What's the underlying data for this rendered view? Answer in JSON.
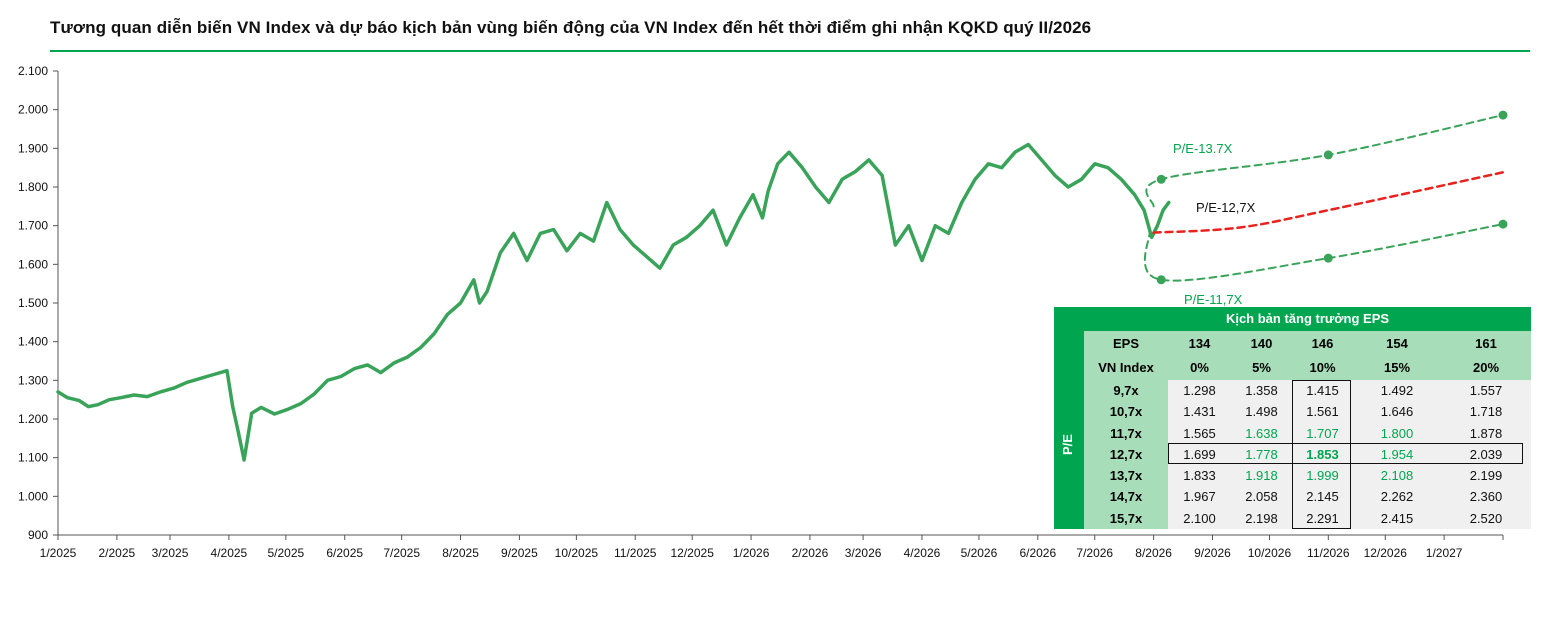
{
  "title": "Tương quan diễn biến VN Index và dự báo kịch bản vùng biến động của VN Index đến hết thời điểm ghi nhận KQKD quý II/2026",
  "colors": {
    "accent": "#00a64f",
    "history_line": "#3aa35a",
    "pe_mid_line": "#e8221e",
    "header_fill": "#a8ddb9"
  },
  "chart_data": {
    "type": "line",
    "title": "Tương quan diễn biến VN Index và dự báo kịch bản vùng biến động của VN Index đến hết thời điểm ghi nhận KQKD quý II/2026",
    "ylim": [
      900,
      2100
    ],
    "yticks": [
      "900",
      "1.000",
      "1.100",
      "1.200",
      "1.300",
      "1.400",
      "1.500",
      "1.600",
      "1.700",
      "1.800",
      "1.900",
      "2.000",
      "2.100"
    ],
    "xlim": [
      "2025-01",
      "2027-02"
    ],
    "xticks": [
      "1/2025",
      "2/2025",
      "3/2025",
      "4/2025",
      "5/2025",
      "6/2025",
      "7/2025",
      "8/2025",
      "9/2025",
      "10/2025",
      "11/2025",
      "12/2025",
      "1/2026",
      "2/2026",
      "3/2026",
      "4/2026",
      "5/2026",
      "6/2026",
      "7/2026",
      "8/2026",
      "9/2026",
      "10/2026",
      "11/2026",
      "12/2026",
      "1/2027"
    ],
    "grid": false,
    "series": [
      {
        "name": "VN Index",
        "points": [
          [
            "2025-01-01",
            1270
          ],
          [
            "2025-01-06",
            1255
          ],
          [
            "2025-01-12",
            1248
          ],
          [
            "2025-01-17",
            1232
          ],
          [
            "2025-01-22",
            1237
          ],
          [
            "2025-01-28",
            1250
          ],
          [
            "2025-02-03",
            1255
          ],
          [
            "2025-02-10",
            1262
          ],
          [
            "2025-02-17",
            1258
          ],
          [
            "2025-02-24",
            1270
          ],
          [
            "2025-03-03",
            1280
          ],
          [
            "2025-03-10",
            1295
          ],
          [
            "2025-03-17",
            1305
          ],
          [
            "2025-03-24",
            1315
          ],
          [
            "2025-03-31",
            1325
          ],
          [
            "2025-04-03",
            1232
          ],
          [
            "2025-04-06",
            1165
          ],
          [
            "2025-04-09",
            1094
          ],
          [
            "2025-04-13",
            1215
          ],
          [
            "2025-04-18",
            1230
          ],
          [
            "2025-04-25",
            1213
          ],
          [
            "2025-05-02",
            1225
          ],
          [
            "2025-05-09",
            1240
          ],
          [
            "2025-05-16",
            1265
          ],
          [
            "2025-05-23",
            1300
          ],
          [
            "2025-05-30",
            1310
          ],
          [
            "2025-06-06",
            1330
          ],
          [
            "2025-06-13",
            1340
          ],
          [
            "2025-06-20",
            1320
          ],
          [
            "2025-06-27",
            1345
          ],
          [
            "2025-07-04",
            1360
          ],
          [
            "2025-07-11",
            1385
          ],
          [
            "2025-07-18",
            1420
          ],
          [
            "2025-07-25",
            1470
          ],
          [
            "2025-08-01",
            1500
          ],
          [
            "2025-08-08",
            1560
          ],
          [
            "2025-08-11",
            1500
          ],
          [
            "2025-08-15",
            1530
          ],
          [
            "2025-08-22",
            1630
          ],
          [
            "2025-08-29",
            1680
          ],
          [
            "2025-09-05",
            1610
          ],
          [
            "2025-09-12",
            1680
          ],
          [
            "2025-09-19",
            1690
          ],
          [
            "2025-09-26",
            1635
          ],
          [
            "2025-10-03",
            1680
          ],
          [
            "2025-10-10",
            1660
          ],
          [
            "2025-10-17",
            1760
          ],
          [
            "2025-10-24",
            1690
          ],
          [
            "2025-10-31",
            1650
          ],
          [
            "2025-11-07",
            1620
          ],
          [
            "2025-11-14",
            1590
          ],
          [
            "2025-11-21",
            1650
          ],
          [
            "2025-11-28",
            1670
          ],
          [
            "2025-12-05",
            1700
          ],
          [
            "2025-12-12",
            1740
          ],
          [
            "2025-12-19",
            1650
          ],
          [
            "2025-12-26",
            1720
          ],
          [
            "2026-01-02",
            1780
          ],
          [
            "2026-01-07",
            1720
          ],
          [
            "2026-01-10",
            1790
          ],
          [
            "2026-01-15",
            1860
          ],
          [
            "2026-01-21",
            1890
          ],
          [
            "2026-01-28",
            1850
          ],
          [
            "2026-02-04",
            1800
          ],
          [
            "2026-02-11",
            1760
          ],
          [
            "2026-02-18",
            1820
          ],
          [
            "2026-02-25",
            1840
          ],
          [
            "2026-03-04",
            1870
          ],
          [
            "2026-03-11",
            1830
          ],
          [
            "2026-03-18",
            1650
          ],
          [
            "2026-03-25",
            1700
          ],
          [
            "2026-04-01",
            1610
          ],
          [
            "2026-04-08",
            1700
          ],
          [
            "2026-04-15",
            1680
          ],
          [
            "2026-04-22",
            1760
          ],
          [
            "2026-04-29",
            1820
          ],
          [
            "2026-05-06",
            1860
          ],
          [
            "2026-05-13",
            1850
          ],
          [
            "2026-05-20",
            1890
          ],
          [
            "2026-05-27",
            1910
          ],
          [
            "2026-06-03",
            1870
          ],
          [
            "2026-06-10",
            1830
          ],
          [
            "2026-06-17",
            1800
          ],
          [
            "2026-06-24",
            1820
          ],
          [
            "2026-07-01",
            1860
          ],
          [
            "2026-07-08",
            1850
          ],
          [
            "2026-07-15",
            1820
          ],
          [
            "2026-07-22",
            1780
          ],
          [
            "2026-07-27",
            1740
          ],
          [
            "2026-07-31",
            1670
          ],
          [
            "2026-08-03",
            1700
          ],
          [
            "2026-08-06",
            1740
          ],
          [
            "2026-08-09",
            1760
          ]
        ]
      },
      {
        "name": "P/E-13.7X",
        "style": "dashed",
        "points": [
          [
            "2026-08-01",
            1750
          ],
          [
            "2026-08-05",
            1820
          ],
          [
            "2026-11-01",
            1883
          ],
          [
            "2027-02-01",
            1986
          ]
        ],
        "markers": [
          [
            "2026-08-05",
            1820
          ],
          [
            "2026-11-01",
            1883
          ],
          [
            "2027-02-01",
            1986
          ]
        ]
      },
      {
        "name": "P/E-12,7X",
        "style": "dashed",
        "points": [
          [
            "2026-08-01",
            1682
          ],
          [
            "2026-09-15",
            1695
          ],
          [
            "2026-11-01",
            1740
          ],
          [
            "2027-02-01",
            1838
          ]
        ],
        "markers": []
      },
      {
        "name": "P/E-11,7X",
        "style": "dashed",
        "points": [
          [
            "2026-07-30",
            1690
          ],
          [
            "2026-08-05",
            1560
          ],
          [
            "2026-11-01",
            1616
          ],
          [
            "2027-02-01",
            1704
          ]
        ],
        "markers": [
          [
            "2026-08-05",
            1560
          ],
          [
            "2026-11-01",
            1616
          ],
          [
            "2027-02-01",
            1704
          ]
        ]
      }
    ],
    "annotations": [
      "P/E-13.7X",
      "P/E-12,7X",
      "P/E-11,7X"
    ]
  },
  "eps_table": {
    "pe_axis_label": "P/E",
    "title": "Kịch bản tăng trưởng EPS",
    "eps_label": "EPS",
    "eps_values": [
      "134",
      "140",
      "146",
      "154",
      "161"
    ],
    "growth_label": "VN Index",
    "growth_values": [
      "0%",
      "5%",
      "10%",
      "15%",
      "20%"
    ],
    "rows": [
      {
        "pe": "9,7x",
        "values": [
          "1.298",
          "1.358",
          "1.415",
          "1.492",
          "1.557"
        ]
      },
      {
        "pe": "10,7x",
        "values": [
          "1.431",
          "1.498",
          "1.561",
          "1.646",
          "1.718"
        ]
      },
      {
        "pe": "11,7x",
        "values": [
          "1.565",
          "1.638",
          "1.707",
          "1.800",
          "1.878"
        ]
      },
      {
        "pe": "12,7x",
        "values": [
          "1.699",
          "1.778",
          "1.853",
          "1.954",
          "2.039"
        ]
      },
      {
        "pe": "13,7x",
        "values": [
          "1.833",
          "1.918",
          "1.999",
          "2.108",
          "2.199"
        ]
      },
      {
        "pe": "14,7x",
        "values": [
          "1.967",
          "2.058",
          "2.145",
          "2.262",
          "2.360"
        ]
      },
      {
        "pe": "15,7x",
        "values": [
          "2.100",
          "2.198",
          "2.291",
          "2.415",
          "2.520"
        ]
      }
    ]
  }
}
